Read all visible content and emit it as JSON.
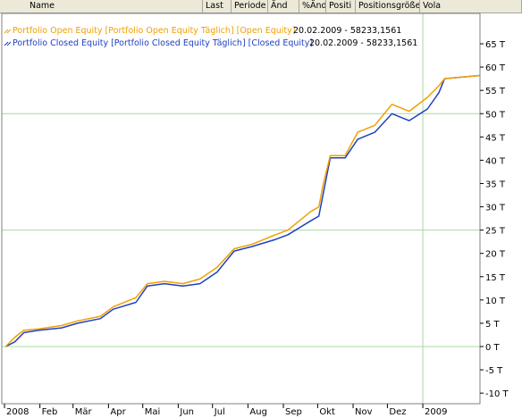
{
  "header": {
    "columns": [
      "Name",
      "Last",
      "Periode",
      "Änd",
      "%Änd",
      "Positi",
      "Positionsgröße",
      "Vola"
    ]
  },
  "colors": {
    "open_equity": "#f0a000",
    "closed_equity": "#2040c0",
    "grid": "#a8d8a0",
    "background": "#ffffff"
  },
  "chart_data": {
    "type": "line",
    "x_months": [
      "2008",
      "Feb",
      "Mär",
      "Apr",
      "Mai",
      "Jun",
      "Jul",
      "Aug",
      "Sep",
      "Okt",
      "Nov",
      "Dez",
      "2009"
    ],
    "y_ticks": [
      "65 T",
      "60 T",
      "55 T",
      "50 T",
      "45 T",
      "40 T",
      "35 T",
      "30 T",
      "25 T",
      "20 T",
      "15 T",
      "10 T",
      "5 T",
      "0 T",
      "-5 T",
      "-10 T"
    ],
    "ylim": [
      -10,
      65
    ],
    "grid": "horizontal lines at 0, 25 and 50 T; vertical line at 2009",
    "legend_placement": "top-left",
    "series": [
      {
        "name": "Portfolio Open Equity [Portfolio Open Equity  Täglich] [Open Equity]",
        "legend_value": "20.02.2009 - 58233,1561",
        "points": [
          [
            "2008-01-02",
            0
          ],
          [
            "2008-01-10",
            2
          ],
          [
            "2008-01-18",
            3.5
          ],
          [
            "2008-01-31",
            3.8
          ],
          [
            "2008-02-20",
            4.5
          ],
          [
            "2008-03-05",
            5.5
          ],
          [
            "2008-03-25",
            6.5
          ],
          [
            "2008-04-05",
            8.5
          ],
          [
            "2008-04-25",
            10.5
          ],
          [
            "2008-05-05",
            13.5
          ],
          [
            "2008-05-20",
            14
          ],
          [
            "2008-06-05",
            13.5
          ],
          [
            "2008-06-20",
            14.5
          ],
          [
            "2008-07-05",
            17
          ],
          [
            "2008-07-20",
            21
          ],
          [
            "2008-08-05",
            22
          ],
          [
            "2008-08-25",
            24
          ],
          [
            "2008-09-05",
            25
          ],
          [
            "2008-09-25",
            29
          ],
          [
            "2008-10-02",
            30
          ],
          [
            "2008-10-06",
            35
          ],
          [
            "2008-10-12",
            41
          ],
          [
            "2008-10-25",
            41
          ],
          [
            "2008-11-05",
            46
          ],
          [
            "2008-11-20",
            47.5
          ],
          [
            "2008-12-05",
            52
          ],
          [
            "2008-12-20",
            50.5
          ],
          [
            "2009-01-05",
            53.5
          ],
          [
            "2009-01-15",
            56
          ],
          [
            "2009-01-20",
            57.5
          ],
          [
            "2009-02-20",
            58.2
          ]
        ]
      },
      {
        "name": "Portfolio Closed Equity [Portfolio Closed Equity  Täglich] [Closed Equity]",
        "legend_value": "20.02.2009 - 58233,1561",
        "points": [
          [
            "2008-01-02",
            0
          ],
          [
            "2008-01-10",
            1
          ],
          [
            "2008-01-18",
            3
          ],
          [
            "2008-01-31",
            3.5
          ],
          [
            "2008-02-20",
            4
          ],
          [
            "2008-03-05",
            5
          ],
          [
            "2008-03-25",
            6
          ],
          [
            "2008-04-05",
            8
          ],
          [
            "2008-04-25",
            9.5
          ],
          [
            "2008-05-05",
            13
          ],
          [
            "2008-05-20",
            13.5
          ],
          [
            "2008-06-05",
            13
          ],
          [
            "2008-06-20",
            13.5
          ],
          [
            "2008-07-05",
            16
          ],
          [
            "2008-07-20",
            20.5
          ],
          [
            "2008-08-05",
            21.5
          ],
          [
            "2008-08-25",
            23
          ],
          [
            "2008-09-05",
            24
          ],
          [
            "2008-09-25",
            27
          ],
          [
            "2008-10-02",
            28
          ],
          [
            "2008-10-06",
            33
          ],
          [
            "2008-10-12",
            40.5
          ],
          [
            "2008-10-25",
            40.5
          ],
          [
            "2008-11-05",
            44.5
          ],
          [
            "2008-11-20",
            46
          ],
          [
            "2008-12-05",
            50
          ],
          [
            "2008-12-20",
            48.5
          ],
          [
            "2009-01-05",
            51
          ],
          [
            "2009-01-15",
            54.5
          ],
          [
            "2009-01-20",
            57.5
          ],
          [
            "2009-02-20",
            58.2
          ]
        ]
      }
    ]
  }
}
